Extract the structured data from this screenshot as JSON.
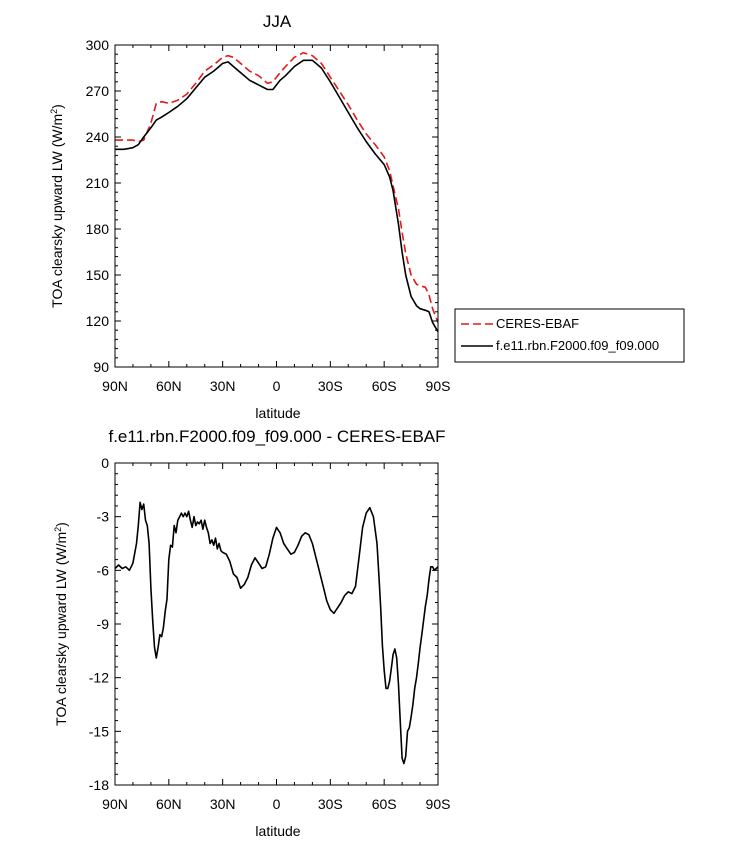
{
  "chart_data": [
    {
      "type": "line",
      "title": "JJA",
      "xlabel": "latitude",
      "ylabel": "TOA clearsky upward LW (W/m",
      "ylabel_sup": "2",
      "ylabel_close": ")",
      "xlim": [
        90,
        -90
      ],
      "ylim": [
        90,
        300
      ],
      "xticks": [
        90,
        60,
        30,
        0,
        -30,
        -60,
        -90
      ],
      "xticklabels": [
        "90N",
        "60N",
        "30N",
        "0",
        "30S",
        "60S",
        "90S"
      ],
      "yticks": [
        90,
        120,
        150,
        180,
        210,
        240,
        270,
        300
      ],
      "yticklabels": [
        "90",
        "120",
        "150",
        "180",
        "210",
        "240",
        "270",
        "300"
      ],
      "grid": false,
      "legend_position": "right",
      "series": [
        {
          "name": "CERES-EBAF",
          "color": "#e31a1c",
          "style": "dashed",
          "x": [
            90,
            85,
            80,
            77,
            74,
            70,
            67,
            64,
            60,
            55,
            50,
            45,
            40,
            35,
            30,
            27,
            24,
            20,
            15,
            10,
            5,
            2,
            -2,
            -5,
            -10,
            -15,
            -20,
            -25,
            -30,
            -35,
            -40,
            -45,
            -50,
            -55,
            -60,
            -63,
            -65,
            -68,
            -70,
            -72,
            -75,
            -78,
            -80,
            -83,
            -85,
            -87,
            -89,
            -90
          ],
          "y": [
            238,
            238,
            238,
            237,
            238,
            249,
            262,
            263,
            262,
            264,
            268,
            275,
            283,
            287,
            292,
            293,
            292,
            288,
            283,
            280,
            275,
            276,
            282,
            286,
            292,
            295,
            293,
            288,
            279,
            270,
            261,
            251,
            242,
            235,
            227,
            218,
            208,
            193,
            178,
            164,
            150,
            144,
            143,
            142,
            137,
            128,
            122,
            119
          ]
        },
        {
          "name": "f.e11.rbn.F2000.f09_f09.000",
          "color": "#000000",
          "style": "solid",
          "x": [
            90,
            85,
            80,
            77,
            74,
            70,
            67,
            64,
            60,
            55,
            50,
            45,
            40,
            35,
            30,
            27,
            24,
            20,
            15,
            10,
            5,
            2,
            -2,
            -5,
            -10,
            -15,
            -20,
            -25,
            -30,
            -35,
            -40,
            -45,
            -50,
            -55,
            -60,
            -63,
            -65,
            -68,
            -70,
            -72,
            -75,
            -78,
            -80,
            -83,
            -85,
            -87,
            -89,
            -90
          ],
          "y": [
            232,
            232,
            233,
            235,
            240,
            246,
            251,
            253,
            256,
            260,
            265,
            272,
            279,
            283,
            288,
            289,
            286,
            282,
            277,
            274,
            271,
            271,
            277,
            280,
            286,
            290,
            290,
            285,
            276,
            266,
            256,
            246,
            237,
            229,
            222,
            214,
            205,
            183,
            165,
            150,
            136,
            130,
            128,
            127,
            126,
            119,
            115,
            113
          ]
        }
      ]
    },
    {
      "type": "line",
      "title": "f.e11.rbn.F2000.f09_f09.000 - CERES-EBAF",
      "xlabel": "latitude",
      "ylabel": "TOA clearsky upward LW (W/m",
      "ylabel_sup": "2",
      "ylabel_close": ")",
      "xlim": [
        90,
        -90
      ],
      "ylim": [
        -18,
        0
      ],
      "xticks": [
        90,
        60,
        30,
        0,
        -30,
        -60,
        -90
      ],
      "xticklabels": [
        "90N",
        "60N",
        "30N",
        "0",
        "30S",
        "60S",
        "90S"
      ],
      "yticks": [
        0,
        -3,
        -6,
        -9,
        -12,
        -15,
        -18
      ],
      "yticklabels": [
        "0",
        "-3",
        "-6",
        "-9",
        "-12",
        "-15",
        "-18"
      ],
      "grid": false,
      "series": [
        {
          "color": "#000000",
          "style": "solid",
          "x": [
            90,
            88,
            86,
            84,
            82,
            80,
            78,
            77,
            76,
            75,
            74,
            73,
            72,
            71,
            70,
            69,
            68,
            67,
            66,
            65,
            64,
            63,
            62,
            61,
            60,
            59,
            58,
            57,
            56,
            55,
            54,
            53,
            52,
            51,
            50,
            49,
            48,
            47,
            46,
            45,
            44,
            43,
            42,
            41,
            40,
            39,
            38,
            37,
            36,
            35,
            34,
            33,
            32,
            31,
            30,
            28,
            26,
            24,
            22,
            20,
            18,
            16,
            14,
            12,
            10,
            8,
            6,
            4,
            2,
            0,
            -2,
            -4,
            -6,
            -8,
            -10,
            -12,
            -14,
            -16,
            -18,
            -20,
            -22,
            -24,
            -26,
            -28,
            -30,
            -32,
            -34,
            -36,
            -38,
            -40,
            -42,
            -44,
            -46,
            -48,
            -50,
            -52,
            -54,
            -56,
            -57,
            -58,
            -59,
            -60,
            -61,
            -62,
            -63,
            -64,
            -65,
            -66,
            -67,
            -68,
            -69,
            -70,
            -71,
            -72,
            -73,
            -74,
            -75,
            -76,
            -77,
            -78,
            -79,
            -80,
            -81,
            -82,
            -83,
            -84,
            -85,
            -86,
            -87,
            -88,
            -89,
            -90
          ],
          "y": [
            -5.9,
            -5.7,
            -5.9,
            -5.8,
            -6.0,
            -5.6,
            -4.5,
            -3.5,
            -2.2,
            -2.6,
            -2.3,
            -3.2,
            -3.5,
            -4.5,
            -7.0,
            -8.8,
            -10.3,
            -10.9,
            -10.3,
            -9.6,
            -9.7,
            -9.2,
            -8.3,
            -7.6,
            -5.4,
            -4.6,
            -4.7,
            -3.5,
            -3.9,
            -3.2,
            -3.0,
            -2.8,
            -3.0,
            -2.8,
            -3.0,
            -2.7,
            -3.2,
            -3.6,
            -3.0,
            -3.5,
            -3.3,
            -3.4,
            -3.2,
            -3.7,
            -3.2,
            -3.6,
            -3.9,
            -4.5,
            -4.3,
            -4.6,
            -4.2,
            -4.8,
            -4.5,
            -4.9,
            -5.0,
            -5.1,
            -5.5,
            -6.2,
            -6.4,
            -7.0,
            -6.8,
            -6.4,
            -5.7,
            -5.3,
            -5.6,
            -5.9,
            -5.8,
            -5.1,
            -4.2,
            -3.6,
            -3.9,
            -4.5,
            -4.8,
            -5.1,
            -5.0,
            -4.6,
            -4.1,
            -3.9,
            -4.0,
            -4.5,
            -5.3,
            -6.1,
            -6.9,
            -7.7,
            -8.2,
            -8.4,
            -8.1,
            -7.8,
            -7.4,
            -7.2,
            -7.3,
            -6.9,
            -5.3,
            -3.6,
            -2.8,
            -2.5,
            -3.0,
            -4.5,
            -6.2,
            -8.0,
            -10.2,
            -11.6,
            -12.6,
            -12.6,
            -12.2,
            -11.5,
            -10.7,
            -10.4,
            -10.9,
            -12.4,
            -14.5,
            -16.5,
            -16.8,
            -16.4,
            -15.0,
            -14.8,
            -14.2,
            -13.5,
            -12.6,
            -12.0,
            -11.2,
            -10.3,
            -9.6,
            -8.8,
            -8.0,
            -7.4,
            -6.5,
            -5.8,
            -5.8,
            -6.0,
            -5.9,
            -5.8
          ]
        }
      ]
    }
  ]
}
